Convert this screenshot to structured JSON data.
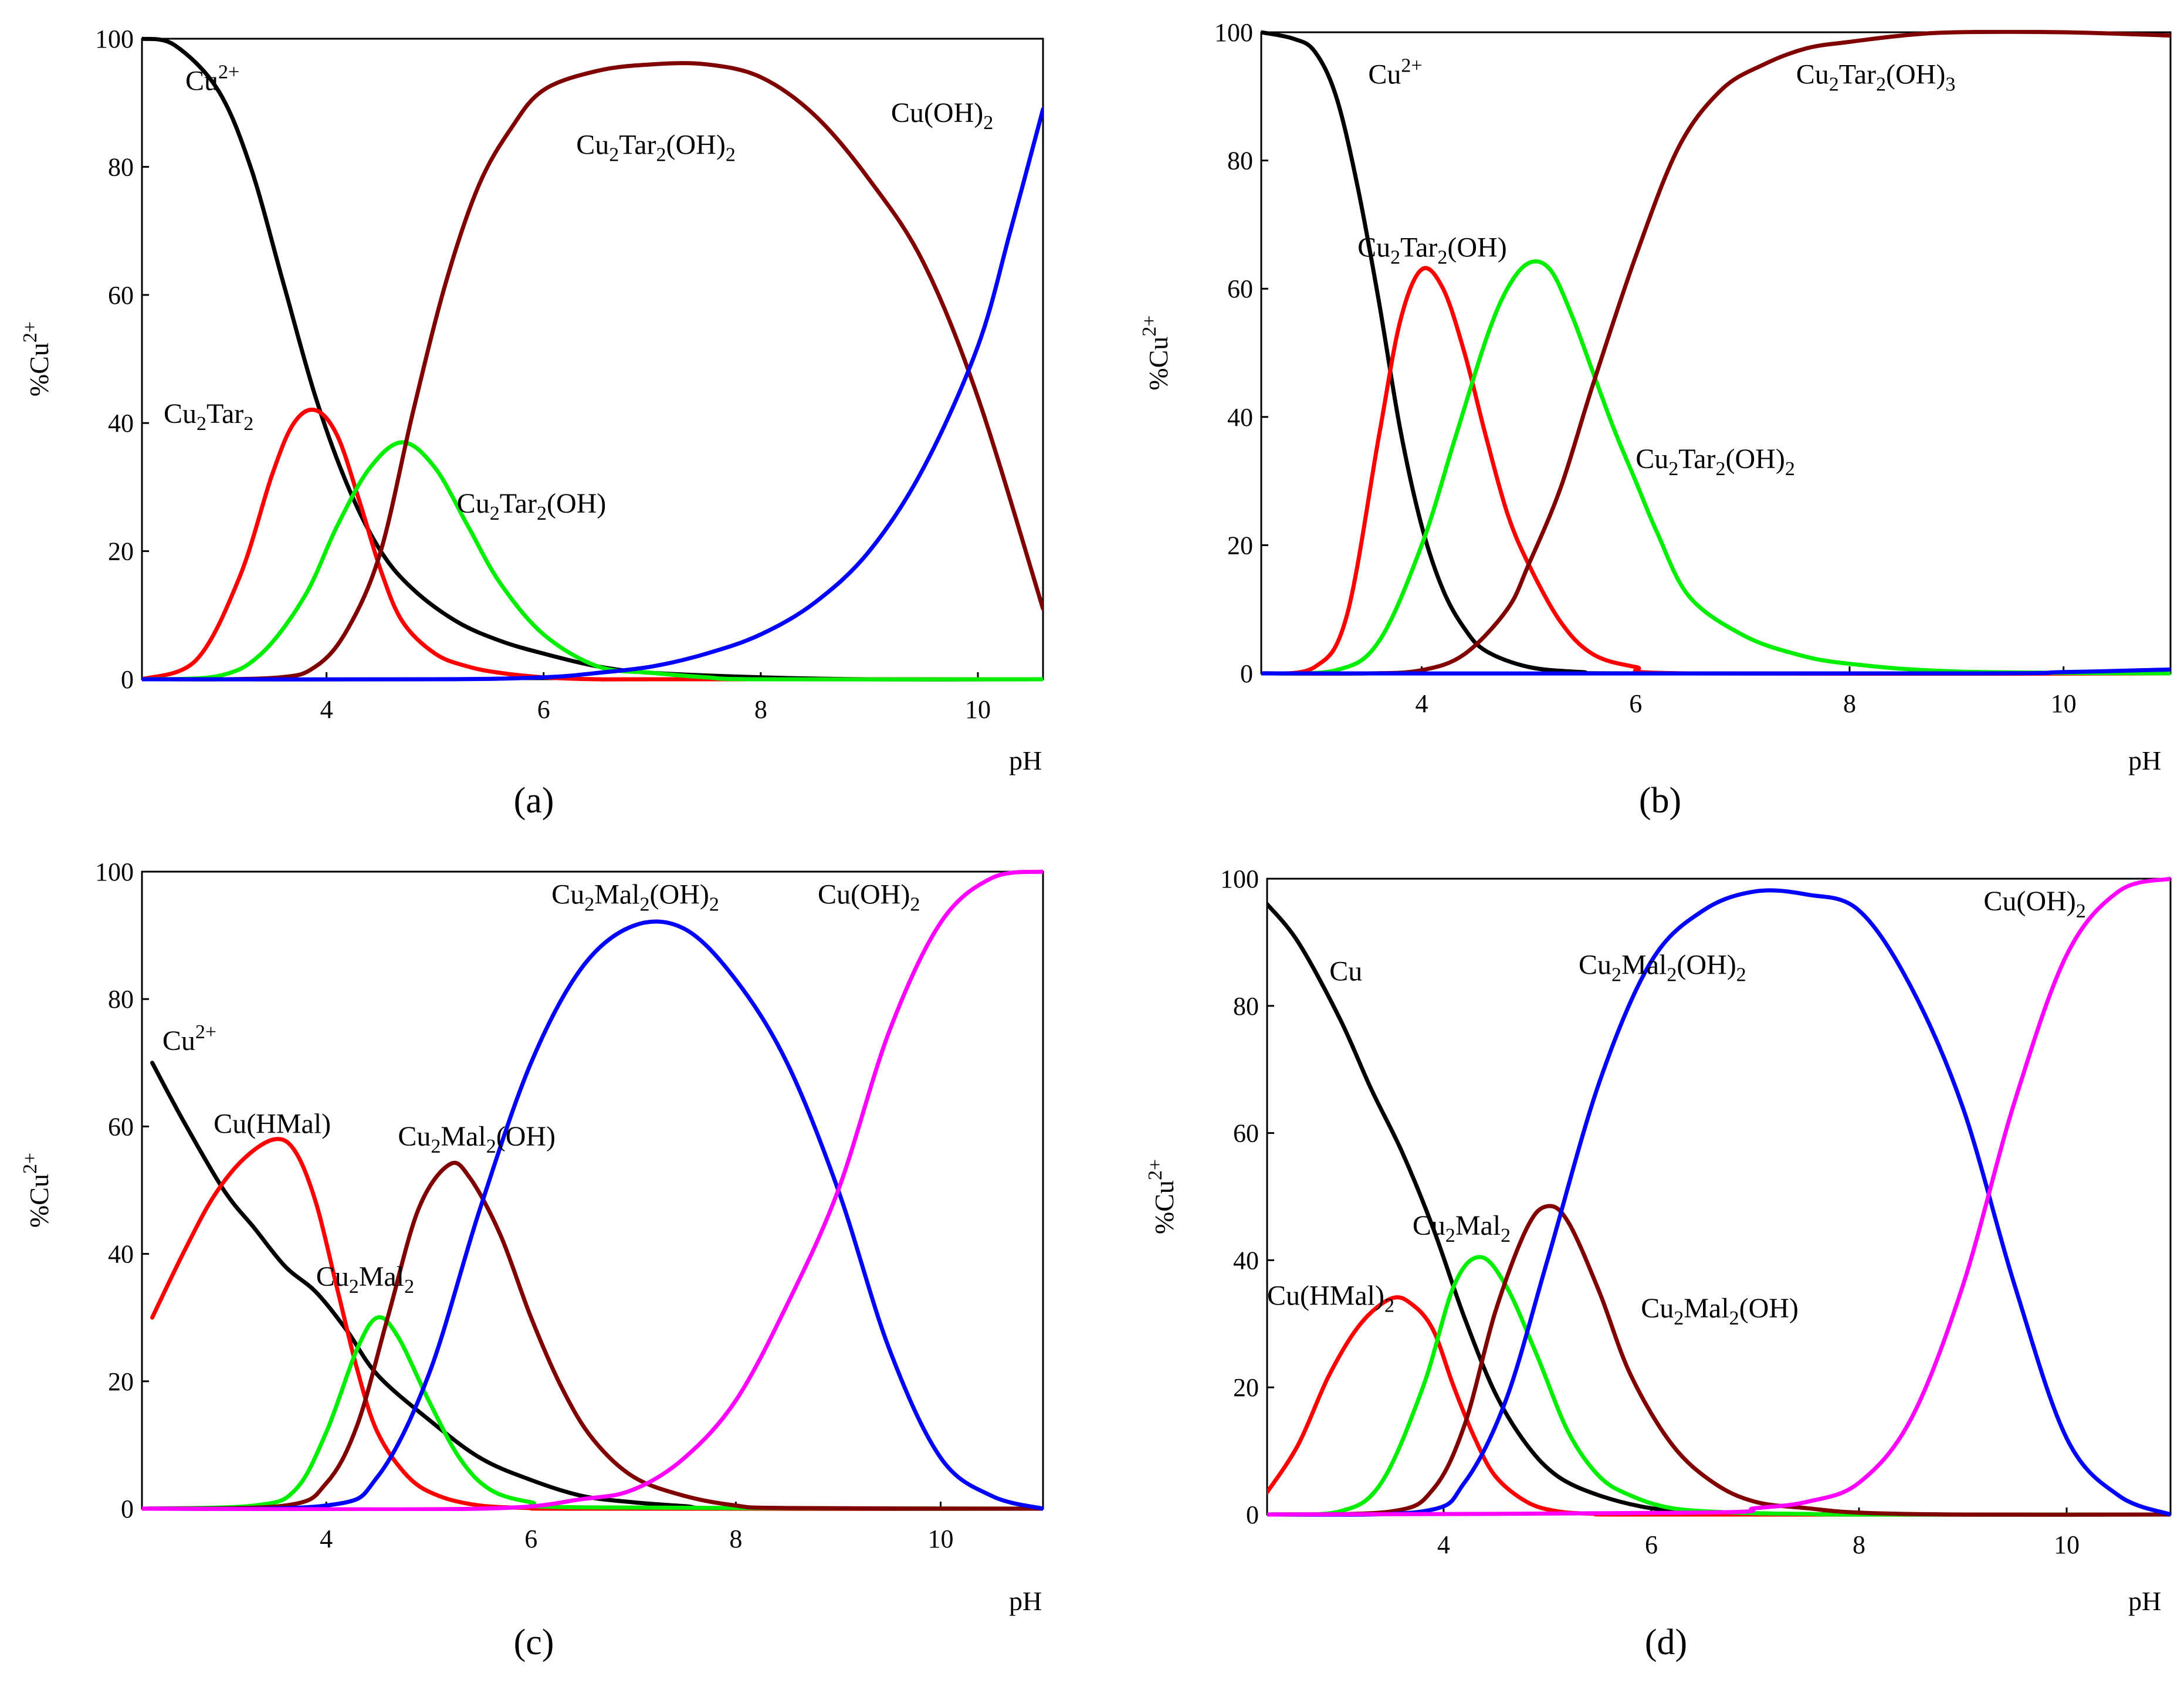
{
  "figure": {
    "panels": [
      "a",
      "b",
      "c",
      "d"
    ]
  },
  "chart_data": [
    {
      "id": "a",
      "type": "line",
      "panel_label": "(a)",
      "xlabel": "pH",
      "ylabel": "%Cu",
      "ylabel_sup": "2+",
      "xlim": [
        2.3,
        10.6
      ],
      "ylim": [
        0,
        100
      ],
      "xticks": [
        4,
        6,
        8,
        10
      ],
      "yticks": [
        0,
        20,
        40,
        60,
        80,
        100
      ],
      "series": [
        {
          "name": "Cu2+",
          "color": "#000000",
          "x": [
            2.3,
            2.6,
            3.0,
            3.3,
            3.6,
            3.9,
            4.2,
            4.5,
            4.8,
            5.2,
            5.6,
            6.0,
            6.5,
            7.0,
            8.0,
            9.0,
            10.6
          ],
          "y": [
            100,
            99,
            92,
            80,
            62,
            44,
            30,
            20,
            14,
            9,
            6,
            4,
            2,
            1,
            0.3,
            0,
            0
          ]
        },
        {
          "name": "Cu2Tar2",
          "color": "#ff0000",
          "x": [
            2.3,
            2.8,
            3.2,
            3.5,
            3.7,
            3.9,
            4.1,
            4.3,
            4.5,
            4.7,
            5.0,
            5.3,
            5.6,
            6.0,
            6.5,
            7.0,
            10.6
          ],
          "y": [
            0,
            3,
            16,
            32,
            40,
            42,
            38,
            28,
            17,
            9,
            4,
            2,
            1,
            0.3,
            0,
            0,
            0
          ]
        },
        {
          "name": "Cu2Tar2(OH)",
          "color": "#00ee00",
          "x": [
            2.3,
            3.0,
            3.4,
            3.8,
            4.1,
            4.4,
            4.7,
            5.0,
            5.3,
            5.6,
            6.0,
            6.5,
            7.0,
            7.5,
            8.0,
            10.6
          ],
          "y": [
            0,
            0.5,
            4,
            13,
            24,
            33,
            37,
            33,
            24,
            15,
            7,
            2,
            1,
            0.3,
            0,
            0
          ]
        },
        {
          "name": "Cu2Tar2(OH)2",
          "color": "#800000",
          "x": [
            2.3,
            3.5,
            3.9,
            4.2,
            4.5,
            4.8,
            5.1,
            5.4,
            5.7,
            6.0,
            6.5,
            7.0,
            7.5,
            8.0,
            8.5,
            9.0,
            9.5,
            10.0,
            10.6
          ],
          "y": [
            0,
            0.2,
            2,
            8,
            20,
            42,
            62,
            77,
            86,
            92,
            95,
            96,
            96,
            94,
            88,
            78,
            65,
            44,
            11
          ]
        },
        {
          "name": "Cu(OH)2",
          "color": "#0000ff",
          "x": [
            2.3,
            5.0,
            6.0,
            6.5,
            7.0,
            7.5,
            8.0,
            8.5,
            9.0,
            9.5,
            10.0,
            10.3,
            10.6
          ],
          "y": [
            0,
            0,
            0.3,
            1,
            2,
            4,
            7,
            12,
            20,
            33,
            52,
            70,
            89
          ]
        }
      ],
      "labels": [
        {
          "series": "Cu2+",
          "base": "Cu",
          "sub": "",
          "sup": "2+",
          "rest": ""
        },
        {
          "series": "Cu2Tar2(OH)2",
          "base": "Cu",
          "sub": "2",
          "mid": "Tar",
          "sub2": "2",
          "rest": "(OH)",
          "sub3": "2"
        },
        {
          "series": "Cu(OH)2",
          "base": "Cu(OH)",
          "sub": "2"
        },
        {
          "series": "Cu2Tar2",
          "base": "Cu",
          "sub": "2",
          "mid": "Tar",
          "sub2": "2"
        },
        {
          "series": "Cu2Tar2(OH)",
          "base": "Cu",
          "sub": "2",
          "mid": "Tar",
          "sub2": "2",
          "rest": "(OH)"
        }
      ]
    },
    {
      "id": "b",
      "type": "line",
      "panel_label": "(b)",
      "xlabel": "pH",
      "ylabel": "%Cu",
      "ylabel_sup": "2+",
      "xlim": [
        2.5,
        11.0
      ],
      "ylim": [
        0,
        100
      ],
      "xticks": [
        4,
        6,
        8,
        10
      ],
      "yticks": [
        0,
        20,
        40,
        60,
        80,
        100
      ],
      "series": [
        {
          "name": "Cu2+",
          "color": "#000000",
          "x": [
            2.5,
            2.8,
            3.0,
            3.2,
            3.4,
            3.6,
            3.8,
            4.0,
            4.2,
            4.4,
            4.6,
            5.0,
            5.5,
            6.0,
            11.0
          ],
          "y": [
            100,
            99,
            97,
            90,
            76,
            58,
            38,
            23,
            13,
            7,
            3.5,
            1,
            0.2,
            0,
            0
          ]
        },
        {
          "name": "Cu2Tar2(OH)",
          "color": "#ff0000",
          "x": [
            2.5,
            3.0,
            3.3,
            3.6,
            3.8,
            4.0,
            4.2,
            4.4,
            4.6,
            4.8,
            5.0,
            5.3,
            5.6,
            6.0,
            6.5,
            11.0
          ],
          "y": [
            0,
            1,
            9,
            37,
            55,
            63,
            60,
            50,
            37,
            25,
            17,
            8,
            3,
            1,
            0,
            0
          ]
        },
        {
          "name": "Cu2Tar2(OH)2",
          "color": "#00ee00",
          "x": [
            2.5,
            3.2,
            3.6,
            4.0,
            4.3,
            4.6,
            4.8,
            5.0,
            5.2,
            5.4,
            5.6,
            5.8,
            6.0,
            6.2,
            6.5,
            7.0,
            7.5,
            8.0,
            9.0,
            11.0
          ],
          "y": [
            0,
            0.5,
            5,
            20,
            36,
            52,
            60,
            64,
            63,
            56,
            47,
            38,
            30,
            22,
            12,
            6,
            3,
            1.5,
            0.3,
            0
          ]
        },
        {
          "name": "Cu2Tar2(OH)3",
          "color": "#800000",
          "x": [
            2.5,
            3.5,
            4.0,
            4.4,
            4.8,
            5.0,
            5.3,
            5.6,
            6.0,
            6.4,
            6.8,
            7.2,
            7.6,
            8.0,
            8.5,
            9.0,
            10.0,
            11.0
          ],
          "y": [
            0,
            0,
            0.5,
            3,
            10,
            17,
            29,
            45,
            65,
            82,
            91,
            95,
            97.5,
            98.5,
            99.5,
            100,
            100,
            99.5
          ]
        },
        {
          "name": "Cu(OH)2",
          "color": "#0000ff",
          "x": [
            2.5,
            9.0,
            10.0,
            11.0
          ],
          "y": [
            0,
            0,
            0.2,
            0.6
          ]
        }
      ],
      "labels": [
        {
          "series": "Cu2+",
          "base": "Cu",
          "sup": "2+"
        },
        {
          "series": "Cu2Tar2(OH)3",
          "base": "Cu",
          "sub": "2",
          "mid": "Tar",
          "sub2": "2",
          "rest": "(OH)",
          "sub3": "3"
        },
        {
          "series": "Cu2Tar2(OH)",
          "base": "Cu",
          "sub": "2",
          "mid": "Tar",
          "sub2": "2",
          "rest": "(OH)"
        },
        {
          "series": "Cu2Tar2(OH)2",
          "base": "Cu",
          "sub": "2",
          "mid": "Tar",
          "sub2": "2",
          "rest": "(OH)",
          "sub3": "2"
        }
      ]
    },
    {
      "id": "c",
      "type": "line",
      "panel_label": "(c)",
      "xlabel": "pH",
      "ylabel": "%Cu",
      "ylabel_sup": "2+",
      "xlim": [
        2.2,
        11.0
      ],
      "ylim": [
        0,
        100
      ],
      "xticks": [
        4,
        6,
        8,
        10
      ],
      "yticks": [
        0,
        20,
        40,
        60,
        80,
        100
      ],
      "series": [
        {
          "name": "Cu2+",
          "color": "#000000",
          "x": [
            2.3,
            2.6,
            3.0,
            3.3,
            3.6,
            3.9,
            4.2,
            4.5,
            5.0,
            5.5,
            6.0,
            6.5,
            7.0,
            7.5,
            8.0,
            11.0
          ],
          "y": [
            70,
            61,
            50,
            44,
            38,
            34,
            28,
            21,
            14,
            8,
            4.5,
            2,
            1,
            0.4,
            0,
            0
          ]
        },
        {
          "name": "Cu(HMal)",
          "color": "#ff0000",
          "x": [
            2.3,
            2.6,
            2.9,
            3.2,
            3.5,
            3.7,
            3.9,
            4.1,
            4.3,
            4.5,
            4.8,
            5.1,
            5.5,
            6.0,
            6.5,
            11.0
          ],
          "y": [
            30,
            40,
            49,
            55,
            58,
            56,
            48,
            35,
            22,
            12,
            5,
            2,
            0.5,
            0.1,
            0,
            0
          ]
        },
        {
          "name": "Cu2Mal2",
          "color": "#00ee00",
          "x": [
            2.2,
            3.3,
            3.7,
            4.0,
            4.3,
            4.5,
            4.7,
            5.0,
            5.3,
            5.6,
            6.0,
            6.5,
            11.0
          ],
          "y": [
            0,
            0.5,
            3,
            12,
            25,
            30,
            27,
            17,
            8,
            3,
            1,
            0.2,
            0
          ]
        },
        {
          "name": "Cu2Mal2(OH)",
          "color": "#800000",
          "x": [
            2.2,
            3.6,
            4.0,
            4.3,
            4.6,
            4.9,
            5.2,
            5.4,
            5.7,
            6.0,
            6.3,
            6.6,
            7.0,
            7.5,
            8.0,
            8.5,
            11.0
          ],
          "y": [
            0,
            0.5,
            4,
            13,
            30,
            47,
            54,
            52,
            43,
            30,
            19,
            11,
            5,
            2,
            0.5,
            0.1,
            0
          ]
        },
        {
          "name": "Cu2Mal2(OH)2",
          "color": "#0000ff",
          "x": [
            2.2,
            4.0,
            4.5,
            5.0,
            5.5,
            6.0,
            6.5,
            7.0,
            7.5,
            8.0,
            8.5,
            9.0,
            9.5,
            10.0,
            10.5,
            11.0
          ],
          "y": [
            0,
            0.5,
            5,
            21,
            47,
            70,
            85,
            91.5,
            91,
            83,
            70,
            50,
            25,
            8,
            2,
            0
          ]
        },
        {
          "name": "Cu(OH)2",
          "color": "#ff00ff",
          "x": [
            2.2,
            5.5,
            6.5,
            7.0,
            7.5,
            8.0,
            8.5,
            9.0,
            9.5,
            10.0,
            10.5,
            11.0
          ],
          "y": [
            0,
            0,
            1.5,
            3,
            8,
            17,
            32,
            50,
            75,
            92,
            99,
            100
          ]
        }
      ],
      "labels": [
        {
          "series": "Cu2Mal2(OH)2",
          "base": "Cu",
          "sub": "2",
          "mid": "Mal",
          "sub2": "2",
          "rest": "(OH)",
          "sub3": "2"
        },
        {
          "series": "Cu(OH)2",
          "base": "Cu(OH)",
          "sub": "2"
        },
        {
          "series": "Cu2+",
          "base": "Cu",
          "sup": "2+"
        },
        {
          "series": "Cu(HMal)",
          "base": "Cu(HMal)"
        },
        {
          "series": "Cu2Mal2(OH)",
          "base": "Cu",
          "sub": "2",
          "mid": "Mal",
          "sub2": "2",
          "rest": "(OH)"
        },
        {
          "series": "Cu2Mal2",
          "base": "Cu",
          "sub": "2",
          "mid": "Mal",
          "sub2": "2"
        }
      ]
    },
    {
      "id": "d",
      "type": "line",
      "panel_label": "(d)",
      "xlabel": "pH",
      "ylabel": "%Cu",
      "ylabel_sup": "2+",
      "xlim": [
        2.3,
        11.0
      ],
      "ylim": [
        0,
        100
      ],
      "xticks": [
        4,
        6,
        8,
        10
      ],
      "yticks": [
        0,
        20,
        40,
        60,
        80,
        100
      ],
      "series": [
        {
          "name": "Cu",
          "color": "#000000",
          "x": [
            2.3,
            2.6,
            3.0,
            3.3,
            3.6,
            3.9,
            4.2,
            4.5,
            4.8,
            5.1,
            5.5,
            6.0,
            6.5,
            7.0,
            8.0,
            11.0
          ],
          "y": [
            96,
            90,
            78,
            67,
            57,
            45,
            31,
            19,
            11,
            6,
            3,
            1,
            0.5,
            0.2,
            0,
            0
          ]
        },
        {
          "name": "Cu(HMal)2",
          "color": "#ff0000",
          "x": [
            2.3,
            2.6,
            2.9,
            3.2,
            3.5,
            3.7,
            3.9,
            4.1,
            4.3,
            4.5,
            4.8,
            5.1,
            5.5,
            6.0,
            11.0
          ],
          "y": [
            3.5,
            11,
            22,
            30,
            34,
            33,
            29,
            20,
            12,
            6,
            2,
            0.5,
            0.1,
            0,
            0
          ]
        },
        {
          "name": "Cu2Mal2",
          "color": "#00ee00",
          "x": [
            2.3,
            3.0,
            3.4,
            3.8,
            4.1,
            4.35,
            4.6,
            4.9,
            5.2,
            5.5,
            5.8,
            6.2,
            6.8,
            7.5,
            8.0,
            11.0
          ],
          "y": [
            0,
            0.5,
            5,
            20,
            36,
            40.5,
            36,
            25,
            13,
            6,
            3,
            1,
            0.3,
            0.1,
            0,
            0
          ]
        },
        {
          "name": "Cu2Mal2(OH)",
          "color": "#800000",
          "x": [
            2.3,
            3.5,
            3.9,
            4.2,
            4.5,
            4.8,
            5.0,
            5.2,
            5.5,
            5.8,
            6.2,
            6.6,
            7.0,
            7.5,
            8.0,
            9.0,
            11.0
          ],
          "y": [
            0,
            0.5,
            4,
            14,
            32,
            45,
            48.5,
            46,
            35,
            22,
            11,
            5,
            2,
            1,
            0.3,
            0,
            0
          ]
        },
        {
          "name": "Cu2Mal2(OH)2",
          "color": "#0000ff",
          "x": [
            2.3,
            3.8,
            4.2,
            4.6,
            5.0,
            5.5,
            6.0,
            6.5,
            7.0,
            7.5,
            8.0,
            8.5,
            9.0,
            9.5,
            10.0,
            10.5,
            11.0
          ],
          "y": [
            0,
            0.5,
            5,
            18,
            40,
            68,
            87,
            95,
            98,
            97.5,
            95,
            83,
            64,
            36,
            12,
            3,
            0
          ]
        },
        {
          "name": "Cu(OH)2",
          "color": "#ff00ff",
          "x": [
            2.3,
            6.5,
            7.0,
            7.5,
            8.0,
            8.5,
            9.0,
            9.5,
            10.0,
            10.5,
            11.0
          ],
          "y": [
            0,
            0.3,
            1,
            2,
            5,
            15,
            36,
            65,
            88,
            98,
            100
          ]
        }
      ],
      "labels": [
        {
          "series": "Cu",
          "base": "Cu"
        },
        {
          "series": "Cu(OH)2",
          "base": "Cu(OH)",
          "sub": "2"
        },
        {
          "series": "Cu2Mal2(OH)2",
          "base": "Cu",
          "sub": "2",
          "mid": "Mal",
          "sub2": "2",
          "rest": "(OH)",
          "sub3": "2"
        },
        {
          "series": "Cu2Mal2",
          "base": "Cu",
          "sub": "2",
          "mid": "Mal",
          "sub2": "2"
        },
        {
          "series": "Cu(HMal)2",
          "base": "Cu(HMal)",
          "sub": "2"
        },
        {
          "series": "Cu2Mal2(OH)",
          "base": "Cu",
          "sub": "2",
          "mid": "Mal",
          "sub2": "2",
          "rest": "(OH)"
        }
      ]
    }
  ]
}
